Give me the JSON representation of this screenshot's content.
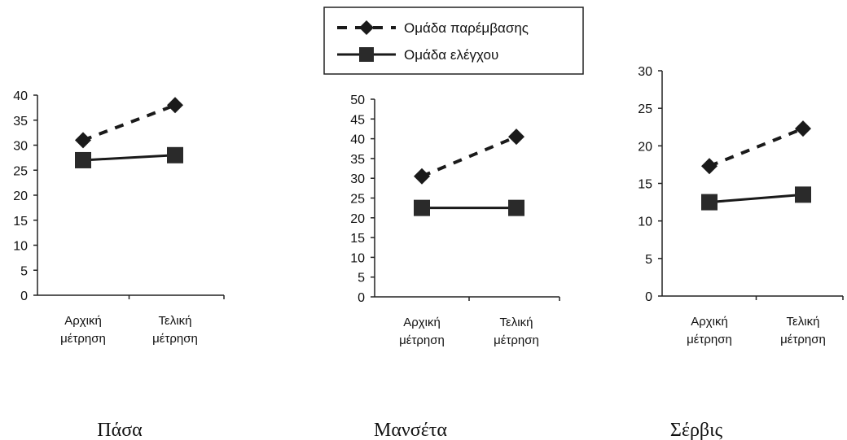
{
  "legend": {
    "items": [
      {
        "label": "Ομάδα παρέμβασης",
        "style": "dashed",
        "marker": "diamond"
      },
      {
        "label": "Ομάδα ελέγχου",
        "style": "solid",
        "marker": "square"
      }
    ]
  },
  "colors": {
    "series": "#1a1a1a",
    "axis": "#222222",
    "background": "#ffffff"
  },
  "chart_data": [
    {
      "type": "line",
      "caption": "Πάσα",
      "categories": [
        "Αρχική μέτρηση",
        "Τελική μέτρηση"
      ],
      "ylim": [
        0,
        40
      ],
      "yticks": [
        0,
        5,
        10,
        15,
        20,
        25,
        30,
        35,
        40
      ],
      "series": [
        {
          "name": "Ομάδα παρέμβασης",
          "values": [
            31,
            38
          ]
        },
        {
          "name": "Ομάδα ελέγχου",
          "values": [
            27,
            28
          ]
        }
      ]
    },
    {
      "type": "line",
      "caption": "Μανσέτα",
      "categories": [
        "Αρχική μέτρηση",
        "Τελική μέτρηση"
      ],
      "ylim": [
        0,
        50
      ],
      "yticks": [
        0,
        5,
        10,
        15,
        20,
        25,
        30,
        35,
        40,
        45,
        50
      ],
      "series": [
        {
          "name": "Ομάδα παρέμβασης",
          "values": [
            30.5,
            40.5
          ]
        },
        {
          "name": "Ομάδα ελέγχου",
          "values": [
            22.5,
            22.5
          ]
        }
      ]
    },
    {
      "type": "line",
      "caption": "Σέρβις",
      "categories": [
        "Αρχική μέτρηση",
        "Τελική μέτρηση"
      ],
      "ylim": [
        0,
        30
      ],
      "yticks": [
        0,
        5,
        10,
        15,
        20,
        25,
        30
      ],
      "series": [
        {
          "name": "Ομάδα παρέμβασης",
          "values": [
            17.3,
            22.3
          ]
        },
        {
          "name": "Ομάδα ελέγχου",
          "values": [
            12.5,
            13.5
          ]
        }
      ]
    }
  ]
}
